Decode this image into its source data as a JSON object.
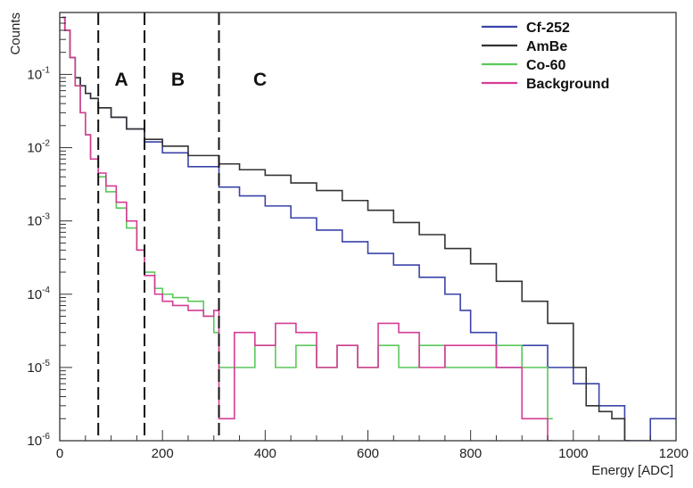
{
  "chart_data": {
    "type": "line",
    "xlabel": "Energy [ADC]",
    "ylabel": "Counts",
    "xlim": [
      0,
      1200
    ],
    "ylim": [
      1e-06,
      0.7
    ],
    "y_scale": "log",
    "grid": false,
    "legend_position": "top-right",
    "x_ticks": [
      {
        "value": 0,
        "label": "0"
      },
      {
        "value": 200,
        "label": "200"
      },
      {
        "value": 400,
        "label": "400"
      },
      {
        "value": 600,
        "label": "600"
      },
      {
        "value": 800,
        "label": "800"
      },
      {
        "value": 1000,
        "label": "1000"
      },
      {
        "value": 1200,
        "label": "1200"
      }
    ],
    "y_ticks": [
      {
        "value": 1e-06,
        "base": "10",
        "exp": "-6"
      },
      {
        "value": 1e-05,
        "base": "10",
        "exp": "-5"
      },
      {
        "value": 0.0001,
        "base": "10",
        "exp": "-4"
      },
      {
        "value": 0.001,
        "base": "10",
        "exp": "-3"
      },
      {
        "value": 0.01,
        "base": "10",
        "exp": "-2"
      },
      {
        "value": 0.1,
        "base": "10",
        "exp": "-1"
      }
    ],
    "region_boundaries": [
      75,
      165,
      310
    ],
    "regions": [
      {
        "label": "A",
        "x": 120
      },
      {
        "label": "B",
        "x": 230
      },
      {
        "label": "C",
        "x": 390
      }
    ],
    "series": [
      {
        "name": "Cf-252",
        "color": "#3a43a8",
        "x": [
          5,
          10,
          20,
          30,
          40,
          50,
          60,
          75,
          100,
          130,
          165,
          200,
          250,
          310,
          350,
          400,
          450,
          500,
          550,
          600,
          650,
          700,
          750,
          780,
          800,
          850,
          900,
          950,
          1000,
          1050,
          1100,
          1150,
          1200
        ],
        "y": [
          0.6,
          0.4,
          0.17,
          0.09,
          0.07,
          0.055,
          0.047,
          0.035,
          0.026,
          0.018,
          0.012,
          0.0085,
          0.0055,
          0.0029,
          0.0022,
          0.0016,
          0.0011,
          0.00075,
          0.00052,
          0.00036,
          0.00025,
          0.00017,
          0.0001,
          6e-05,
          3e-05,
          1e-05,
          2e-05,
          1e-05,
          6e-06,
          3e-06,
          1e-06,
          2e-06,
          2e-06
        ]
      },
      {
        "name": "AmBe",
        "color": "#333333",
        "x": [
          5,
          10,
          20,
          30,
          40,
          50,
          60,
          75,
          100,
          130,
          165,
          200,
          250,
          310,
          350,
          400,
          450,
          500,
          550,
          600,
          650,
          700,
          750,
          800,
          850,
          900,
          950,
          1000,
          1025,
          1050,
          1075,
          1100
        ],
        "y": [
          0.6,
          0.4,
          0.17,
          0.09,
          0.07,
          0.055,
          0.047,
          0.035,
          0.026,
          0.018,
          0.013,
          0.0105,
          0.0078,
          0.006,
          0.005,
          0.0042,
          0.0033,
          0.0026,
          0.0019,
          0.0014,
          0.00095,
          0.00065,
          0.00042,
          0.00026,
          0.00015,
          8e-05,
          4e-05,
          1e-05,
          3e-06,
          2.5e-06,
          2e-06,
          1e-06
        ]
      },
      {
        "name": "Co-60",
        "color": "#5bc85b",
        "x": [
          5,
          10,
          20,
          30,
          40,
          50,
          60,
          75,
          90,
          110,
          130,
          150,
          165,
          185,
          200,
          220,
          250,
          280,
          300,
          310,
          340,
          380,
          420,
          460,
          500,
          540,
          580,
          620,
          660,
          700,
          750,
          800,
          850,
          900,
          950
        ],
        "y": [
          0.6,
          0.4,
          0.17,
          0.07,
          0.03,
          0.015,
          0.007,
          0.004,
          0.0025,
          0.0015,
          0.0008,
          0.0004,
          0.0002,
          0.00012,
          0.0001,
          9e-05,
          8e-05,
          5e-05,
          3e-05,
          1e-05,
          1e-05,
          2e-05,
          1e-05,
          2e-05,
          1e-05,
          2e-05,
          1e-05,
          2e-05,
          1e-05,
          2e-05,
          1e-05,
          1e-05,
          2e-05,
          1e-05,
          2e-06
        ]
      },
      {
        "name": "Background",
        "color": "#d43c94",
        "x": [
          5,
          10,
          20,
          30,
          40,
          50,
          60,
          75,
          90,
          110,
          130,
          150,
          165,
          185,
          200,
          220,
          250,
          280,
          300,
          310,
          340,
          380,
          420,
          460,
          500,
          540,
          580,
          620,
          660,
          700,
          750,
          800,
          850,
          900,
          950
        ],
        "y": [
          0.6,
          0.4,
          0.17,
          0.07,
          0.03,
          0.015,
          0.007,
          0.0045,
          0.003,
          0.0018,
          0.001,
          0.0004,
          0.00018,
          0.0001,
          8e-05,
          7e-05,
          6e-05,
          5e-05,
          6e-05,
          2e-06,
          3e-05,
          2e-05,
          4e-05,
          3e-05,
          1e-05,
          2e-05,
          1e-05,
          4e-05,
          3e-05,
          1e-05,
          2e-05,
          2e-05,
          1e-05,
          2e-06,
          1e-06
        ]
      }
    ]
  }
}
